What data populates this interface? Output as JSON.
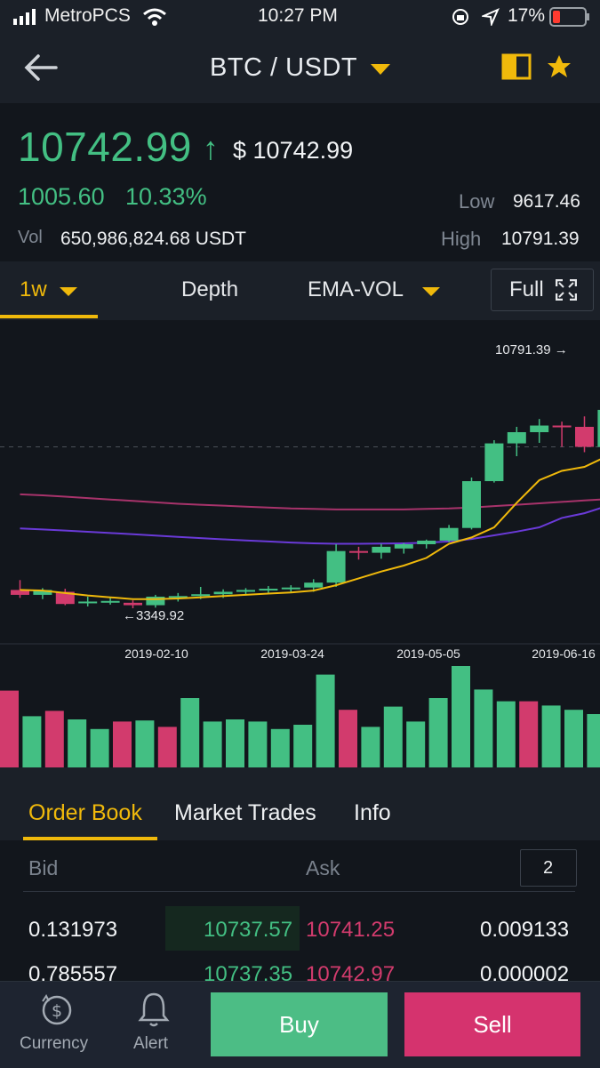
{
  "status": {
    "carrier": "MetroPCS",
    "time": "10:27 PM",
    "battery": "17%"
  },
  "header": {
    "pair": "BTC / USDT"
  },
  "price": {
    "last": "10742.99",
    "arrow": "↑",
    "usd": "$ 10742.99",
    "change": "1005.60",
    "change_pct": "10.33%",
    "low_label": "Low",
    "low": "9617.46",
    "high_label": "High",
    "high": "10791.39",
    "vol_label": "Vol",
    "vol": "650,986,824.68 USDT"
  },
  "toolbar": {
    "interval": "1w",
    "depth": "Depth",
    "indicator": "EMA-VOL",
    "full": "Full"
  },
  "chart_data": {
    "type": "candlestick",
    "period": "1w",
    "x_ticks": [
      "2019-02-10",
      "2019-03-24",
      "2019-05-05",
      "2019-06-16"
    ],
    "annotations": {
      "high": "10791.39 →",
      "low": "←3349.92"
    },
    "candles": [
      {
        "o": 3650,
        "h": 3780,
        "l": 3520,
        "c": 3570
      },
      {
        "o": 3570,
        "h": 3680,
        "l": 3500,
        "c": 3650
      },
      {
        "o": 3620,
        "h": 3670,
        "l": 3400,
        "c": 3420
      },
      {
        "o": 3440,
        "h": 3540,
        "l": 3380,
        "c": 3460
      },
      {
        "o": 3460,
        "h": 3520,
        "l": 3410,
        "c": 3470
      },
      {
        "o": 3440,
        "h": 3480,
        "l": 3350,
        "c": 3400
      },
      {
        "o": 3400,
        "h": 3570,
        "l": 3360,
        "c": 3540
      },
      {
        "o": 3540,
        "h": 3600,
        "l": 3460,
        "c": 3550
      },
      {
        "o": 3550,
        "h": 3700,
        "l": 3500,
        "c": 3580
      },
      {
        "o": 3580,
        "h": 3660,
        "l": 3520,
        "c": 3620
      },
      {
        "o": 3620,
        "h": 3680,
        "l": 3560,
        "c": 3650
      },
      {
        "o": 3650,
        "h": 3710,
        "l": 3590,
        "c": 3670
      },
      {
        "o": 3670,
        "h": 3720,
        "l": 3610,
        "c": 3690
      },
      {
        "o": 3690,
        "h": 3790,
        "l": 3620,
        "c": 3750
      },
      {
        "o": 3750,
        "h": 4200,
        "l": 3700,
        "c": 4120
      },
      {
        "o": 4120,
        "h": 4170,
        "l": 4020,
        "c": 4110
      },
      {
        "o": 4100,
        "h": 4220,
        "l": 4030,
        "c": 4170
      },
      {
        "o": 4150,
        "h": 4250,
        "l": 4090,
        "c": 4200
      },
      {
        "o": 4200,
        "h": 4420,
        "l": 4150,
        "c": 4370
      },
      {
        "o": 4370,
        "h": 5050,
        "l": 4300,
        "c": 4970
      },
      {
        "o": 4970,
        "h": 6100,
        "l": 4900,
        "c": 5980
      },
      {
        "o": 5980,
        "h": 7500,
        "l": 5950,
        "c": 7380
      },
      {
        "o": 7380,
        "h": 8000,
        "l": 6900,
        "c": 7800
      },
      {
        "o": 7800,
        "h": 8300,
        "l": 7400,
        "c": 8050
      },
      {
        "o": 8050,
        "h": 8200,
        "l": 7250,
        "c": 8000
      },
      {
        "o": 8000,
        "h": 8400,
        "l": 7050,
        "c": 7250
      },
      {
        "o": 7250,
        "h": 9300,
        "l": 7250,
        "c": 8650
      },
      {
        "o": 8650,
        "h": 10791,
        "l": 8650,
        "c": 10743
      }
    ],
    "ema_fast": [
      3650,
      3640,
      3600,
      3560,
      3530,
      3500,
      3500,
      3510,
      3530,
      3550,
      3570,
      3590,
      3610,
      3640,
      3720,
      3800,
      3880,
      3950,
      4040,
      4220,
      4520,
      5000,
      5520,
      6000,
      6350,
      6500,
      6900,
      7600
    ],
    "ema_slow": [
      4950,
      4900,
      4850,
      4790,
      4730,
      4670,
      4610,
      4550,
      4490,
      4430,
      4380,
      4330,
      4280,
      4240,
      4220,
      4220,
      4230,
      4240,
      4270,
      4330,
      4450,
      4620,
      4800,
      5000,
      5200,
      5300,
      5450,
      5700
    ],
    "ema_long": [
      5700,
      5680,
      5650,
      5620,
      5590,
      5560,
      5530,
      5500,
      5480,
      5460,
      5440,
      5420,
      5400,
      5390,
      5380,
      5380,
      5380,
      5380,
      5390,
      5400,
      5420,
      5450,
      5480,
      5510,
      5540,
      5570,
      5600,
      5650
    ],
    "volumes": [
      0.72,
      0.48,
      0.53,
      0.45,
      0.36,
      0.43,
      0.44,
      0.38,
      0.65,
      0.43,
      0.45,
      0.43,
      0.36,
      0.4,
      0.87,
      0.54,
      0.38,
      0.57,
      0.43,
      0.65,
      0.95,
      0.73,
      0.62,
      0.62,
      0.58,
      0.54,
      0.5,
      0.5
    ],
    "vol_colors": [
      "r",
      "g",
      "r",
      "g",
      "g",
      "r",
      "g",
      "r",
      "g",
      "g",
      "g",
      "g",
      "g",
      "g",
      "g",
      "r",
      "g",
      "g",
      "g",
      "g",
      "g",
      "g",
      "g",
      "r",
      "g",
      "g",
      "g",
      "g"
    ]
  },
  "tabs": {
    "order_book": "Order Book",
    "market_trades": "Market Trades",
    "info": "Info"
  },
  "book": {
    "bid_label": "Bid",
    "ask_label": "Ask",
    "precision": "2",
    "rows": [
      {
        "bid_qty": "0.131973",
        "bid_price": "10737.57",
        "ask_price": "10741.25",
        "ask_qty": "0.009133"
      },
      {
        "bid_qty": "0.785557",
        "bid_price": "10737.35",
        "ask_price": "10742.97",
        "ask_qty": "0.000002"
      }
    ]
  },
  "bottom": {
    "currency": "Currency",
    "alert": "Alert",
    "buy": "Buy",
    "sell": "Sell"
  },
  "colors": {
    "green": "#43bf83",
    "red": "#d23b6d",
    "accent": "#f0b90b"
  }
}
